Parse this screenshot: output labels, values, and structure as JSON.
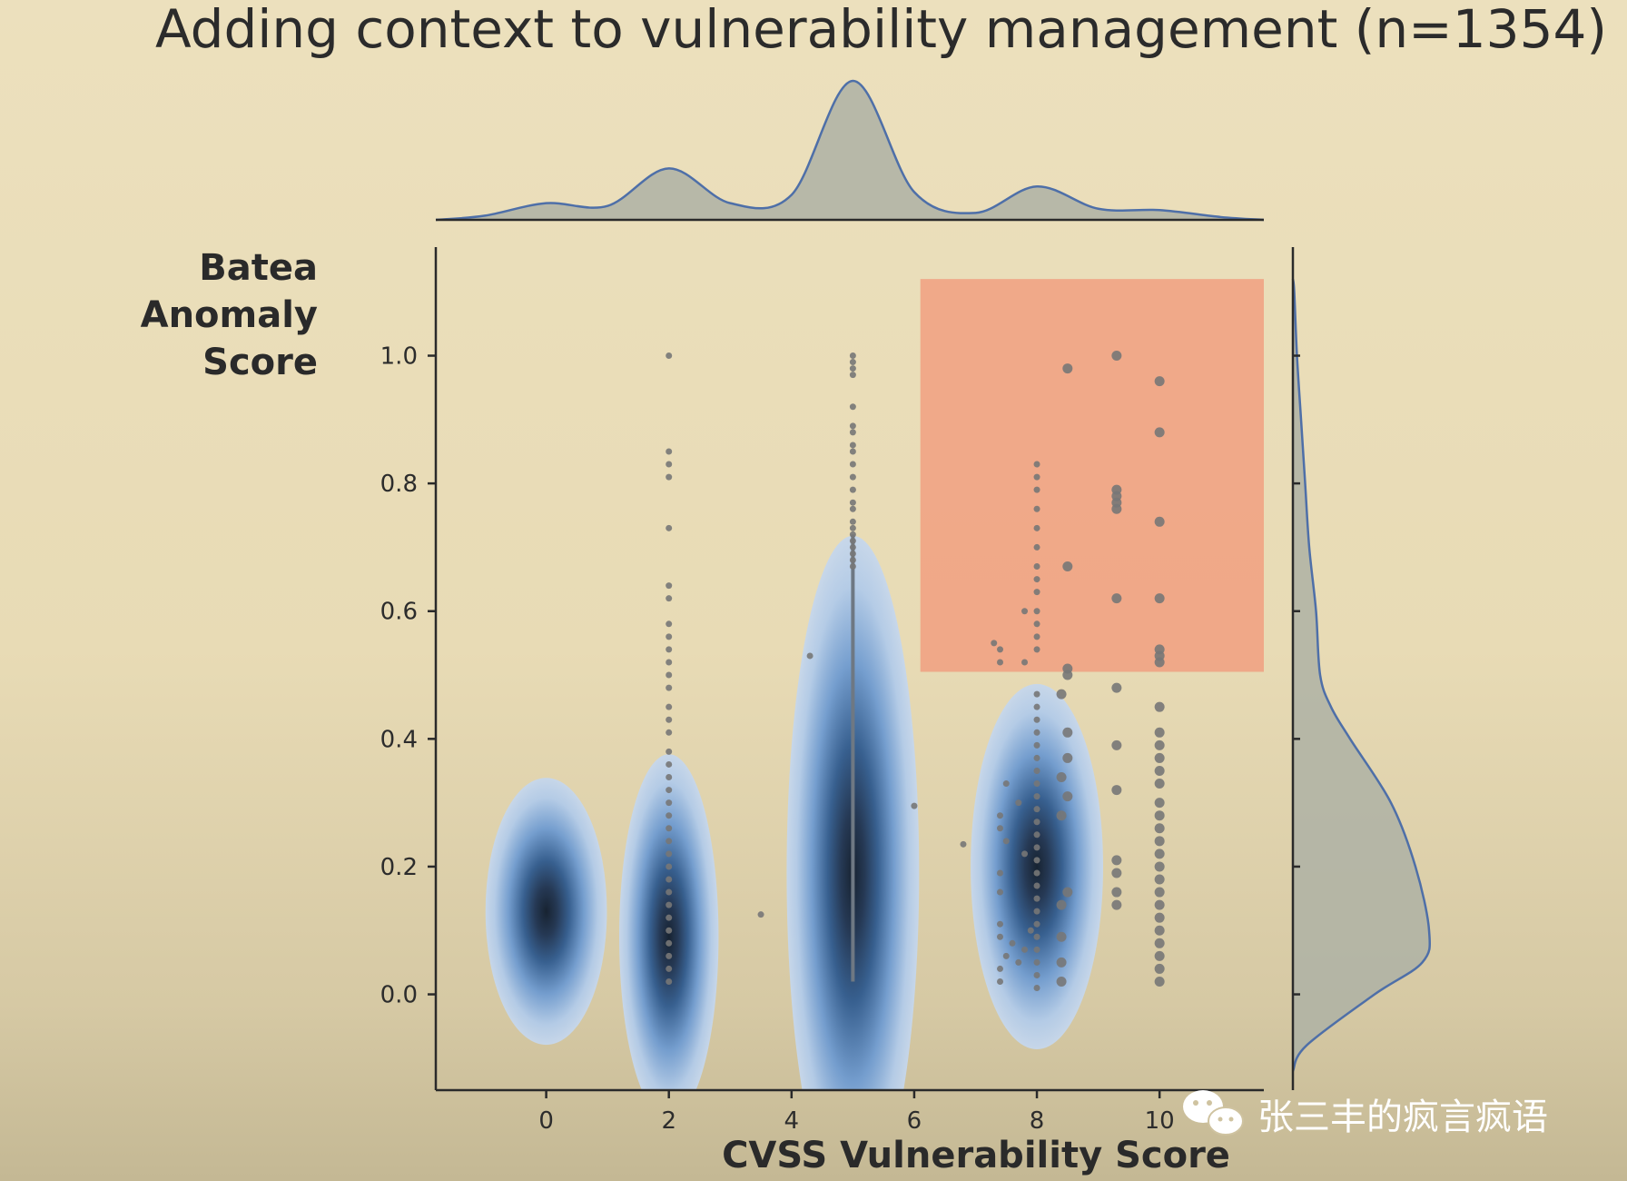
{
  "chart_data": {
    "type": "scatter",
    "title": "Adding context to vulnerability management (n=1354)",
    "xlabel": "CVSS Vulnerability Score",
    "ylabel": [
      "Batea",
      "Anomaly",
      "Score"
    ],
    "xlim": [
      -1.8,
      11.7
    ],
    "ylim": [
      -0.15,
      1.17
    ],
    "xticks": [
      0,
      2,
      4,
      6,
      8,
      10
    ],
    "yticks": [
      0.0,
      0.2,
      0.4,
      0.6,
      0.8,
      1.0
    ],
    "xtick_labels": [
      "0",
      "2",
      "4",
      "6",
      "8",
      "10"
    ],
    "ytick_labels": [
      "0.0",
      "0.2",
      "0.4",
      "0.6",
      "0.8",
      "1.0"
    ],
    "highlight_region": {
      "x": [
        6.1,
        11.7
      ],
      "y": [
        0.505,
        1.12
      ],
      "color": "#f0a484"
    },
    "kde_clusters": [
      {
        "x": 0.0,
        "y": 0.13,
        "sx": 0.55,
        "sy": 0.095
      },
      {
        "x": 2.0,
        "y": 0.09,
        "sx": 0.45,
        "sy": 0.13
      },
      {
        "x": 5.0,
        "y": 0.19,
        "sx": 0.6,
        "sy": 0.24
      },
      {
        "x": 8.0,
        "y": 0.2,
        "sx": 0.6,
        "sy": 0.13
      }
    ],
    "points": [
      [
        2,
        1.0
      ],
      [
        2,
        0.85
      ],
      [
        2,
        0.83
      ],
      [
        2,
        0.81
      ],
      [
        2,
        0.73
      ],
      [
        2,
        0.64
      ],
      [
        2,
        0.62
      ],
      [
        2,
        0.58
      ],
      [
        2,
        0.56
      ],
      [
        2,
        0.54
      ],
      [
        2,
        0.52
      ],
      [
        2,
        0.5
      ],
      [
        2,
        0.48
      ],
      [
        2,
        0.45
      ],
      [
        2,
        0.43
      ],
      [
        2,
        0.41
      ],
      [
        2,
        0.38
      ],
      [
        2,
        0.36
      ],
      [
        2,
        0.34
      ],
      [
        2,
        0.32
      ],
      [
        2,
        0.3
      ],
      [
        2,
        0.28
      ],
      [
        2,
        0.26
      ],
      [
        2,
        0.24
      ],
      [
        2,
        0.22
      ],
      [
        2,
        0.2
      ],
      [
        2,
        0.18
      ],
      [
        2,
        0.16
      ],
      [
        2,
        0.14
      ],
      [
        2,
        0.12
      ],
      [
        2,
        0.1
      ],
      [
        2,
        0.08
      ],
      [
        2,
        0.06
      ],
      [
        2,
        0.04
      ],
      [
        2,
        0.02
      ],
      [
        5,
        1.0
      ],
      [
        5,
        0.99
      ],
      [
        5,
        0.98
      ],
      [
        5,
        0.97
      ],
      [
        5,
        0.92
      ],
      [
        5,
        0.89
      ],
      [
        5,
        0.88
      ],
      [
        5,
        0.86
      ],
      [
        5,
        0.85
      ],
      [
        5,
        0.83
      ],
      [
        5,
        0.81
      ],
      [
        5,
        0.79
      ],
      [
        5,
        0.77
      ],
      [
        5,
        0.76
      ],
      [
        5,
        0.74
      ],
      [
        5,
        0.73
      ],
      [
        5,
        0.72
      ],
      [
        5,
        0.71
      ],
      [
        5,
        0.7
      ],
      [
        5,
        0.69
      ],
      [
        5,
        0.68
      ],
      [
        5,
        0.67
      ],
      [
        4.3,
        0.53
      ],
      [
        6.0,
        0.295
      ],
      [
        3.5,
        0.125
      ],
      [
        6.8,
        0.235
      ],
      [
        8,
        0.83
      ],
      [
        8,
        0.81
      ],
      [
        8,
        0.79
      ],
      [
        8,
        0.76
      ],
      [
        8,
        0.73
      ],
      [
        8,
        0.7
      ],
      [
        8,
        0.67
      ],
      [
        8,
        0.65
      ],
      [
        8,
        0.63
      ],
      [
        8,
        0.6
      ],
      [
        8,
        0.58
      ],
      [
        8,
        0.56
      ],
      [
        8,
        0.54
      ],
      [
        8,
        0.47
      ],
      [
        8,
        0.45
      ],
      [
        8,
        0.43
      ],
      [
        8,
        0.41
      ],
      [
        8,
        0.39
      ],
      [
        8,
        0.37
      ],
      [
        8,
        0.35
      ],
      [
        8,
        0.33
      ],
      [
        8,
        0.31
      ],
      [
        8,
        0.29
      ],
      [
        8,
        0.27
      ],
      [
        8,
        0.25
      ],
      [
        8,
        0.23
      ],
      [
        8,
        0.21
      ],
      [
        8,
        0.19
      ],
      [
        8,
        0.17
      ],
      [
        8,
        0.15
      ],
      [
        8,
        0.13
      ],
      [
        8,
        0.11
      ],
      [
        8,
        0.09
      ],
      [
        8,
        0.07
      ],
      [
        8,
        0.05
      ],
      [
        8,
        0.03
      ],
      [
        8,
        0.01
      ],
      [
        7.8,
        0.6
      ],
      [
        7.4,
        0.54
      ],
      [
        7.4,
        0.52
      ],
      [
        7.3,
        0.55
      ],
      [
        7.8,
        0.52
      ],
      [
        7.5,
        0.33
      ],
      [
        7.4,
        0.28
      ],
      [
        7.4,
        0.26
      ],
      [
        7.5,
        0.24
      ],
      [
        7.4,
        0.19
      ],
      [
        7.4,
        0.16
      ],
      [
        7.4,
        0.11
      ],
      [
        7.4,
        0.09
      ],
      [
        7.5,
        0.06
      ],
      [
        7.4,
        0.04
      ],
      [
        7.4,
        0.02
      ],
      [
        7.6,
        0.08
      ],
      [
        7.7,
        0.05
      ],
      [
        7.7,
        0.3
      ],
      [
        7.8,
        0.22
      ],
      [
        7.8,
        0.07
      ],
      [
        7.9,
        0.1
      ],
      [
        8.5,
        0.98
      ],
      [
        8.5,
        0.67
      ],
      [
        8.5,
        0.51
      ],
      [
        8.5,
        0.5
      ],
      [
        8.4,
        0.47
      ],
      [
        8.5,
        0.41
      ],
      [
        8.5,
        0.37
      ],
      [
        8.4,
        0.34
      ],
      [
        8.5,
        0.31
      ],
      [
        8.4,
        0.28
      ],
      [
        8.5,
        0.16
      ],
      [
        8.4,
        0.14
      ],
      [
        8.4,
        0.09
      ],
      [
        8.4,
        0.05
      ],
      [
        8.4,
        0.02
      ],
      [
        9.3,
        1.0
      ],
      [
        9.3,
        0.79
      ],
      [
        9.3,
        0.78
      ],
      [
        9.3,
        0.77
      ],
      [
        9.3,
        0.76
      ],
      [
        9.3,
        0.62
      ],
      [
        9.3,
        0.48
      ],
      [
        9.3,
        0.39
      ],
      [
        9.3,
        0.32
      ],
      [
        9.3,
        0.21
      ],
      [
        9.3,
        0.19
      ],
      [
        9.3,
        0.16
      ],
      [
        9.3,
        0.14
      ],
      [
        10,
        0.96
      ],
      [
        10,
        0.88
      ],
      [
        10,
        0.74
      ],
      [
        10,
        0.62
      ],
      [
        10,
        0.54
      ],
      [
        10,
        0.53
      ],
      [
        10,
        0.52
      ],
      [
        10,
        0.45
      ],
      [
        10,
        0.41
      ],
      [
        10,
        0.39
      ],
      [
        10,
        0.37
      ],
      [
        10,
        0.35
      ],
      [
        10,
        0.33
      ],
      [
        10,
        0.3
      ],
      [
        10,
        0.28
      ],
      [
        10,
        0.26
      ],
      [
        10,
        0.24
      ],
      [
        10,
        0.22
      ],
      [
        10,
        0.2
      ],
      [
        10,
        0.18
      ],
      [
        10,
        0.16
      ],
      [
        10,
        0.14
      ],
      [
        10,
        0.12
      ],
      [
        10,
        0.1
      ],
      [
        10,
        0.08
      ],
      [
        10,
        0.06
      ],
      [
        10,
        0.04
      ],
      [
        10,
        0.02
      ]
    ],
    "top_marginal": {
      "x": [
        -1.8,
        -1.0,
        0.0,
        1.0,
        2.0,
        3.0,
        4.0,
        5.0,
        6.0,
        7.0,
        8.0,
        9.0,
        10.0,
        11.0,
        11.7
      ],
      "density": [
        0.0,
        0.03,
        0.12,
        0.1,
        0.37,
        0.12,
        0.18,
        1.0,
        0.2,
        0.05,
        0.24,
        0.08,
        0.07,
        0.02,
        0.0
      ]
    },
    "right_marginal": {
      "y": [
        -0.12,
        -0.08,
        0.0,
        0.05,
        0.1,
        0.2,
        0.3,
        0.4,
        0.45,
        0.5,
        0.6,
        0.7,
        0.8,
        0.9,
        1.0,
        1.1,
        1.12
      ],
      "density": [
        0.0,
        0.1,
        0.6,
        0.95,
        1.0,
        0.9,
        0.72,
        0.42,
        0.28,
        0.2,
        0.17,
        0.12,
        0.09,
        0.06,
        0.03,
        0.01,
        0.0
      ]
    },
    "colors": {
      "kde": "#4f7fc0",
      "kde_core": "#0d1a2b",
      "points": "#777777",
      "marginal_fill": "#aeb1a4",
      "marginal_line": "#4e6fa8",
      "highlight": "#f0a484"
    },
    "grid": false
  },
  "watermark": {
    "text": "张三丰的疯言疯语",
    "icon": "wechat-icon"
  }
}
